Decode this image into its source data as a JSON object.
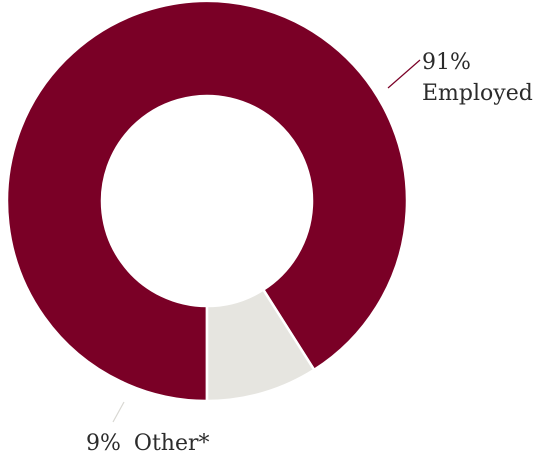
{
  "chart_data": {
    "type": "pie",
    "variant": "donut",
    "title": "",
    "slices": [
      {
        "label": "Employed",
        "value": 91,
        "percent_text": "91%",
        "color": "#7a0026"
      },
      {
        "label": "Other*",
        "value": 9,
        "percent_text": "9%",
        "color": "#e6e5e0"
      }
    ],
    "legend": "none",
    "separator_color": "#ffffff",
    "leader_line_color_employed": "#7a0026",
    "leader_line_color_other": "#d8d7d2"
  }
}
